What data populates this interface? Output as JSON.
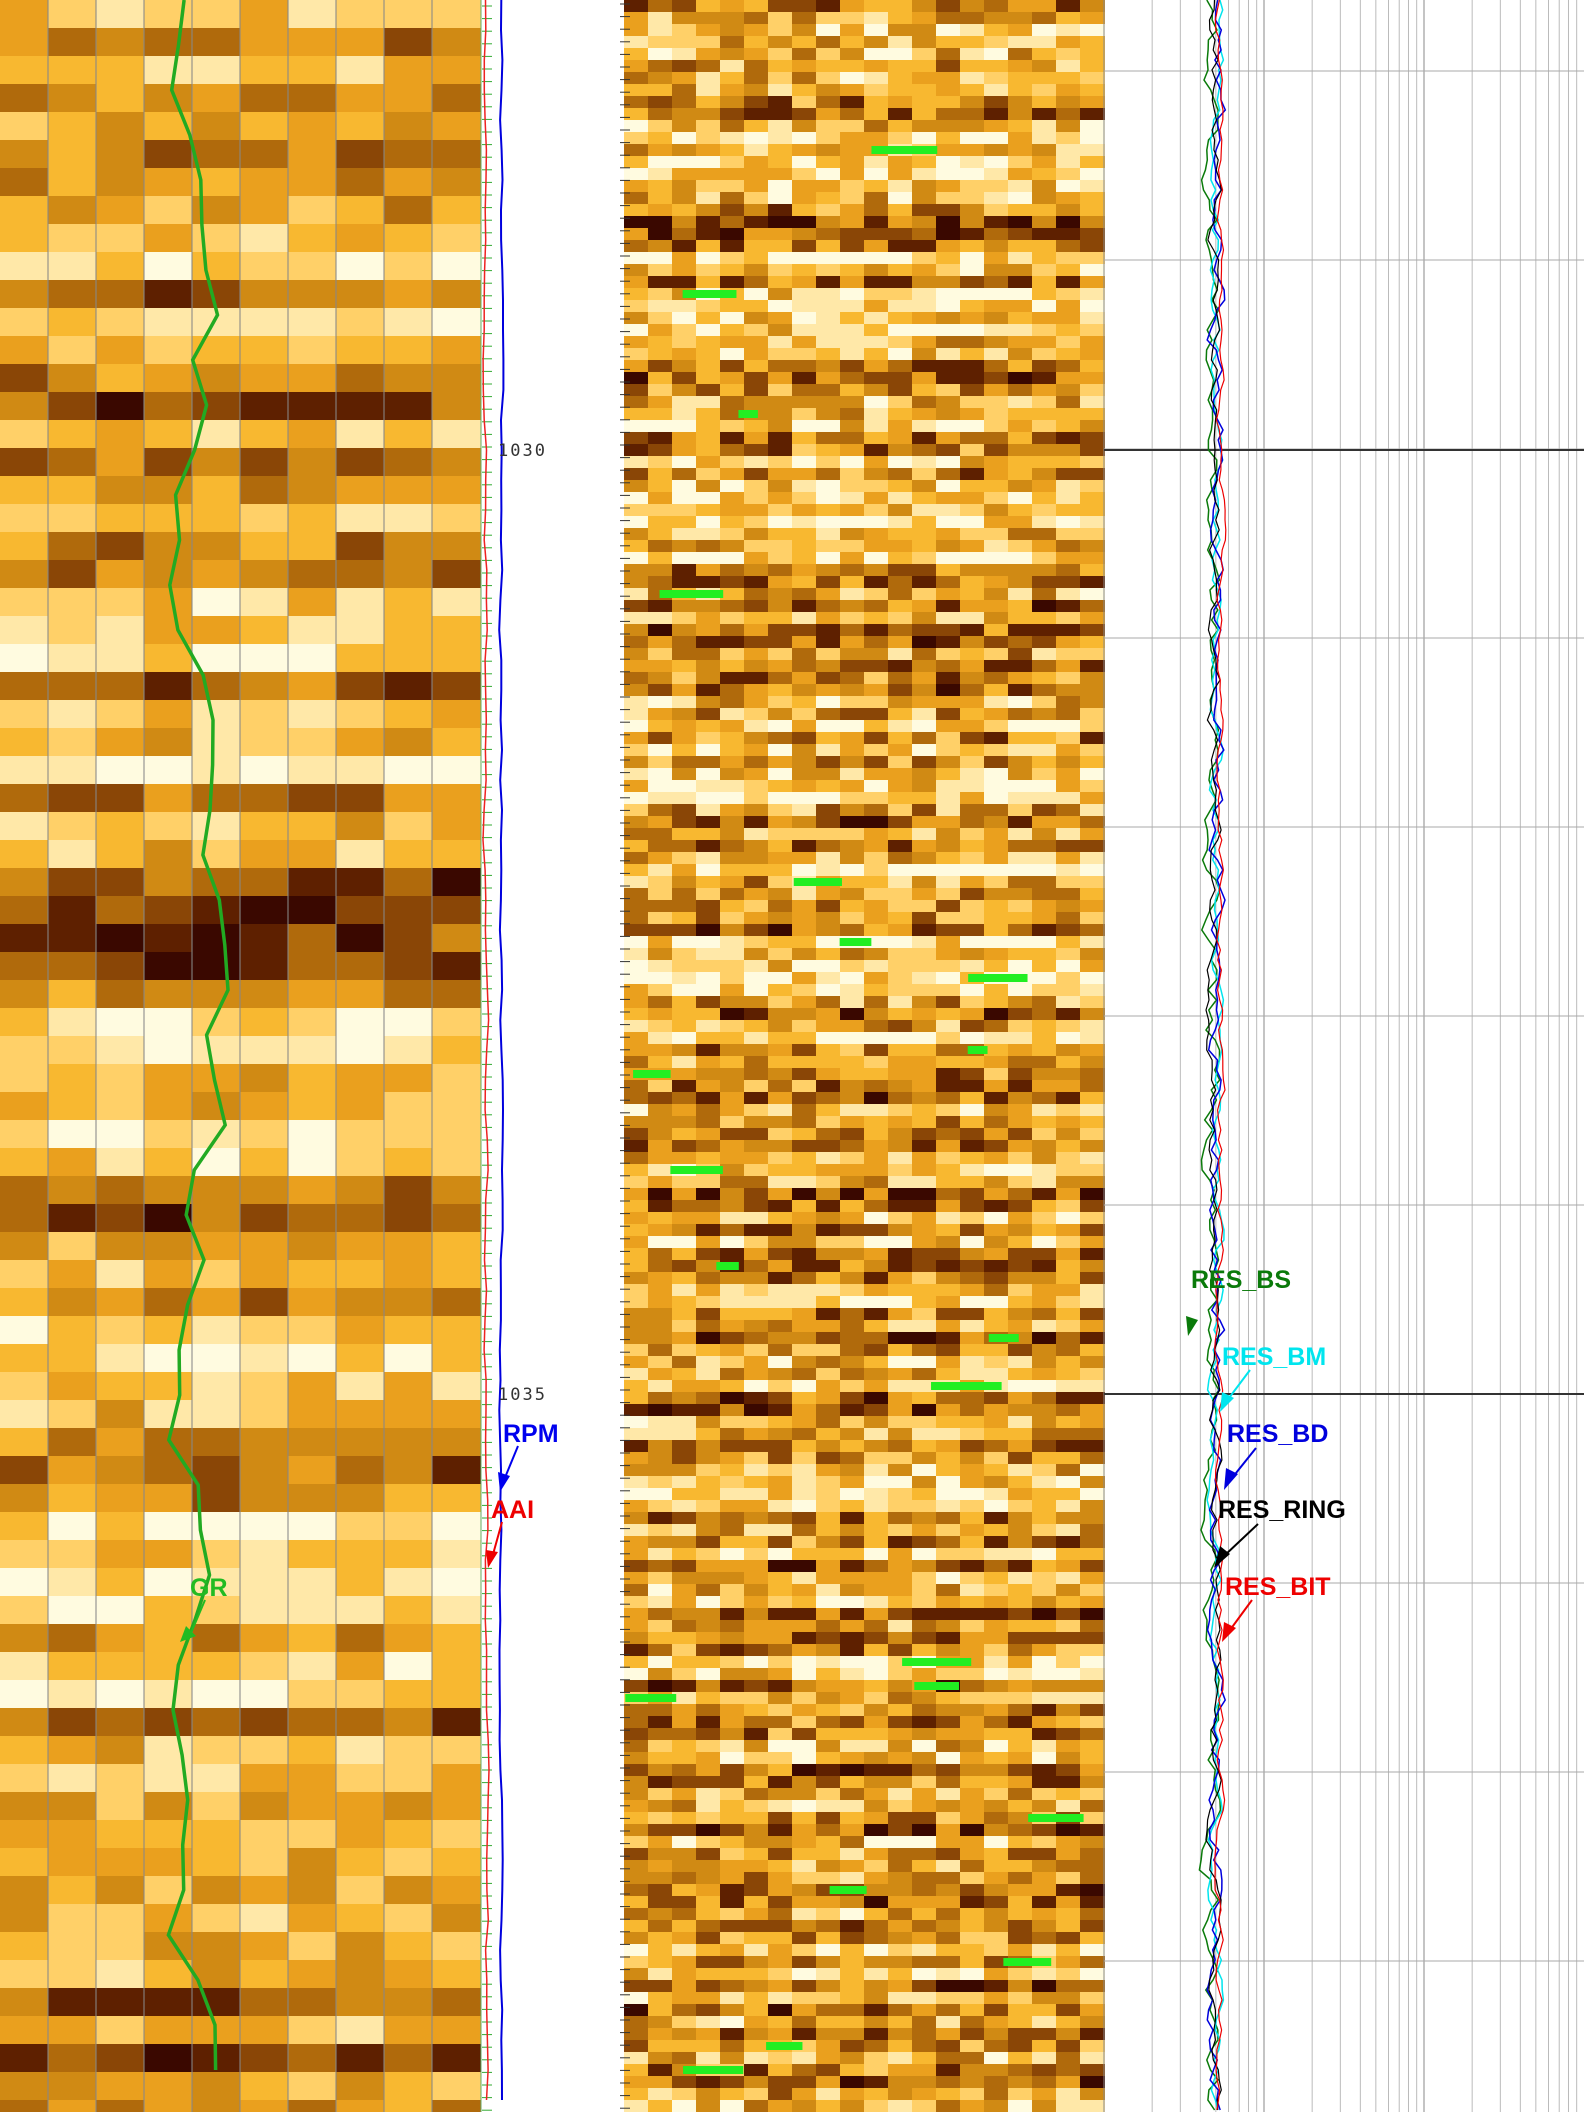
{
  "depth_track": {
    "ticks": [
      "1030",
      "1035"
    ]
  },
  "curve_labels": {
    "gr": "GR",
    "rpm": "RPM",
    "aai": "AAI",
    "res_bs": "RES_BS",
    "res_bm": "RES_BM",
    "res_bd": "RES_BD",
    "res_ring": "RES_RING",
    "res_bit": "RES_BIT"
  }
}
